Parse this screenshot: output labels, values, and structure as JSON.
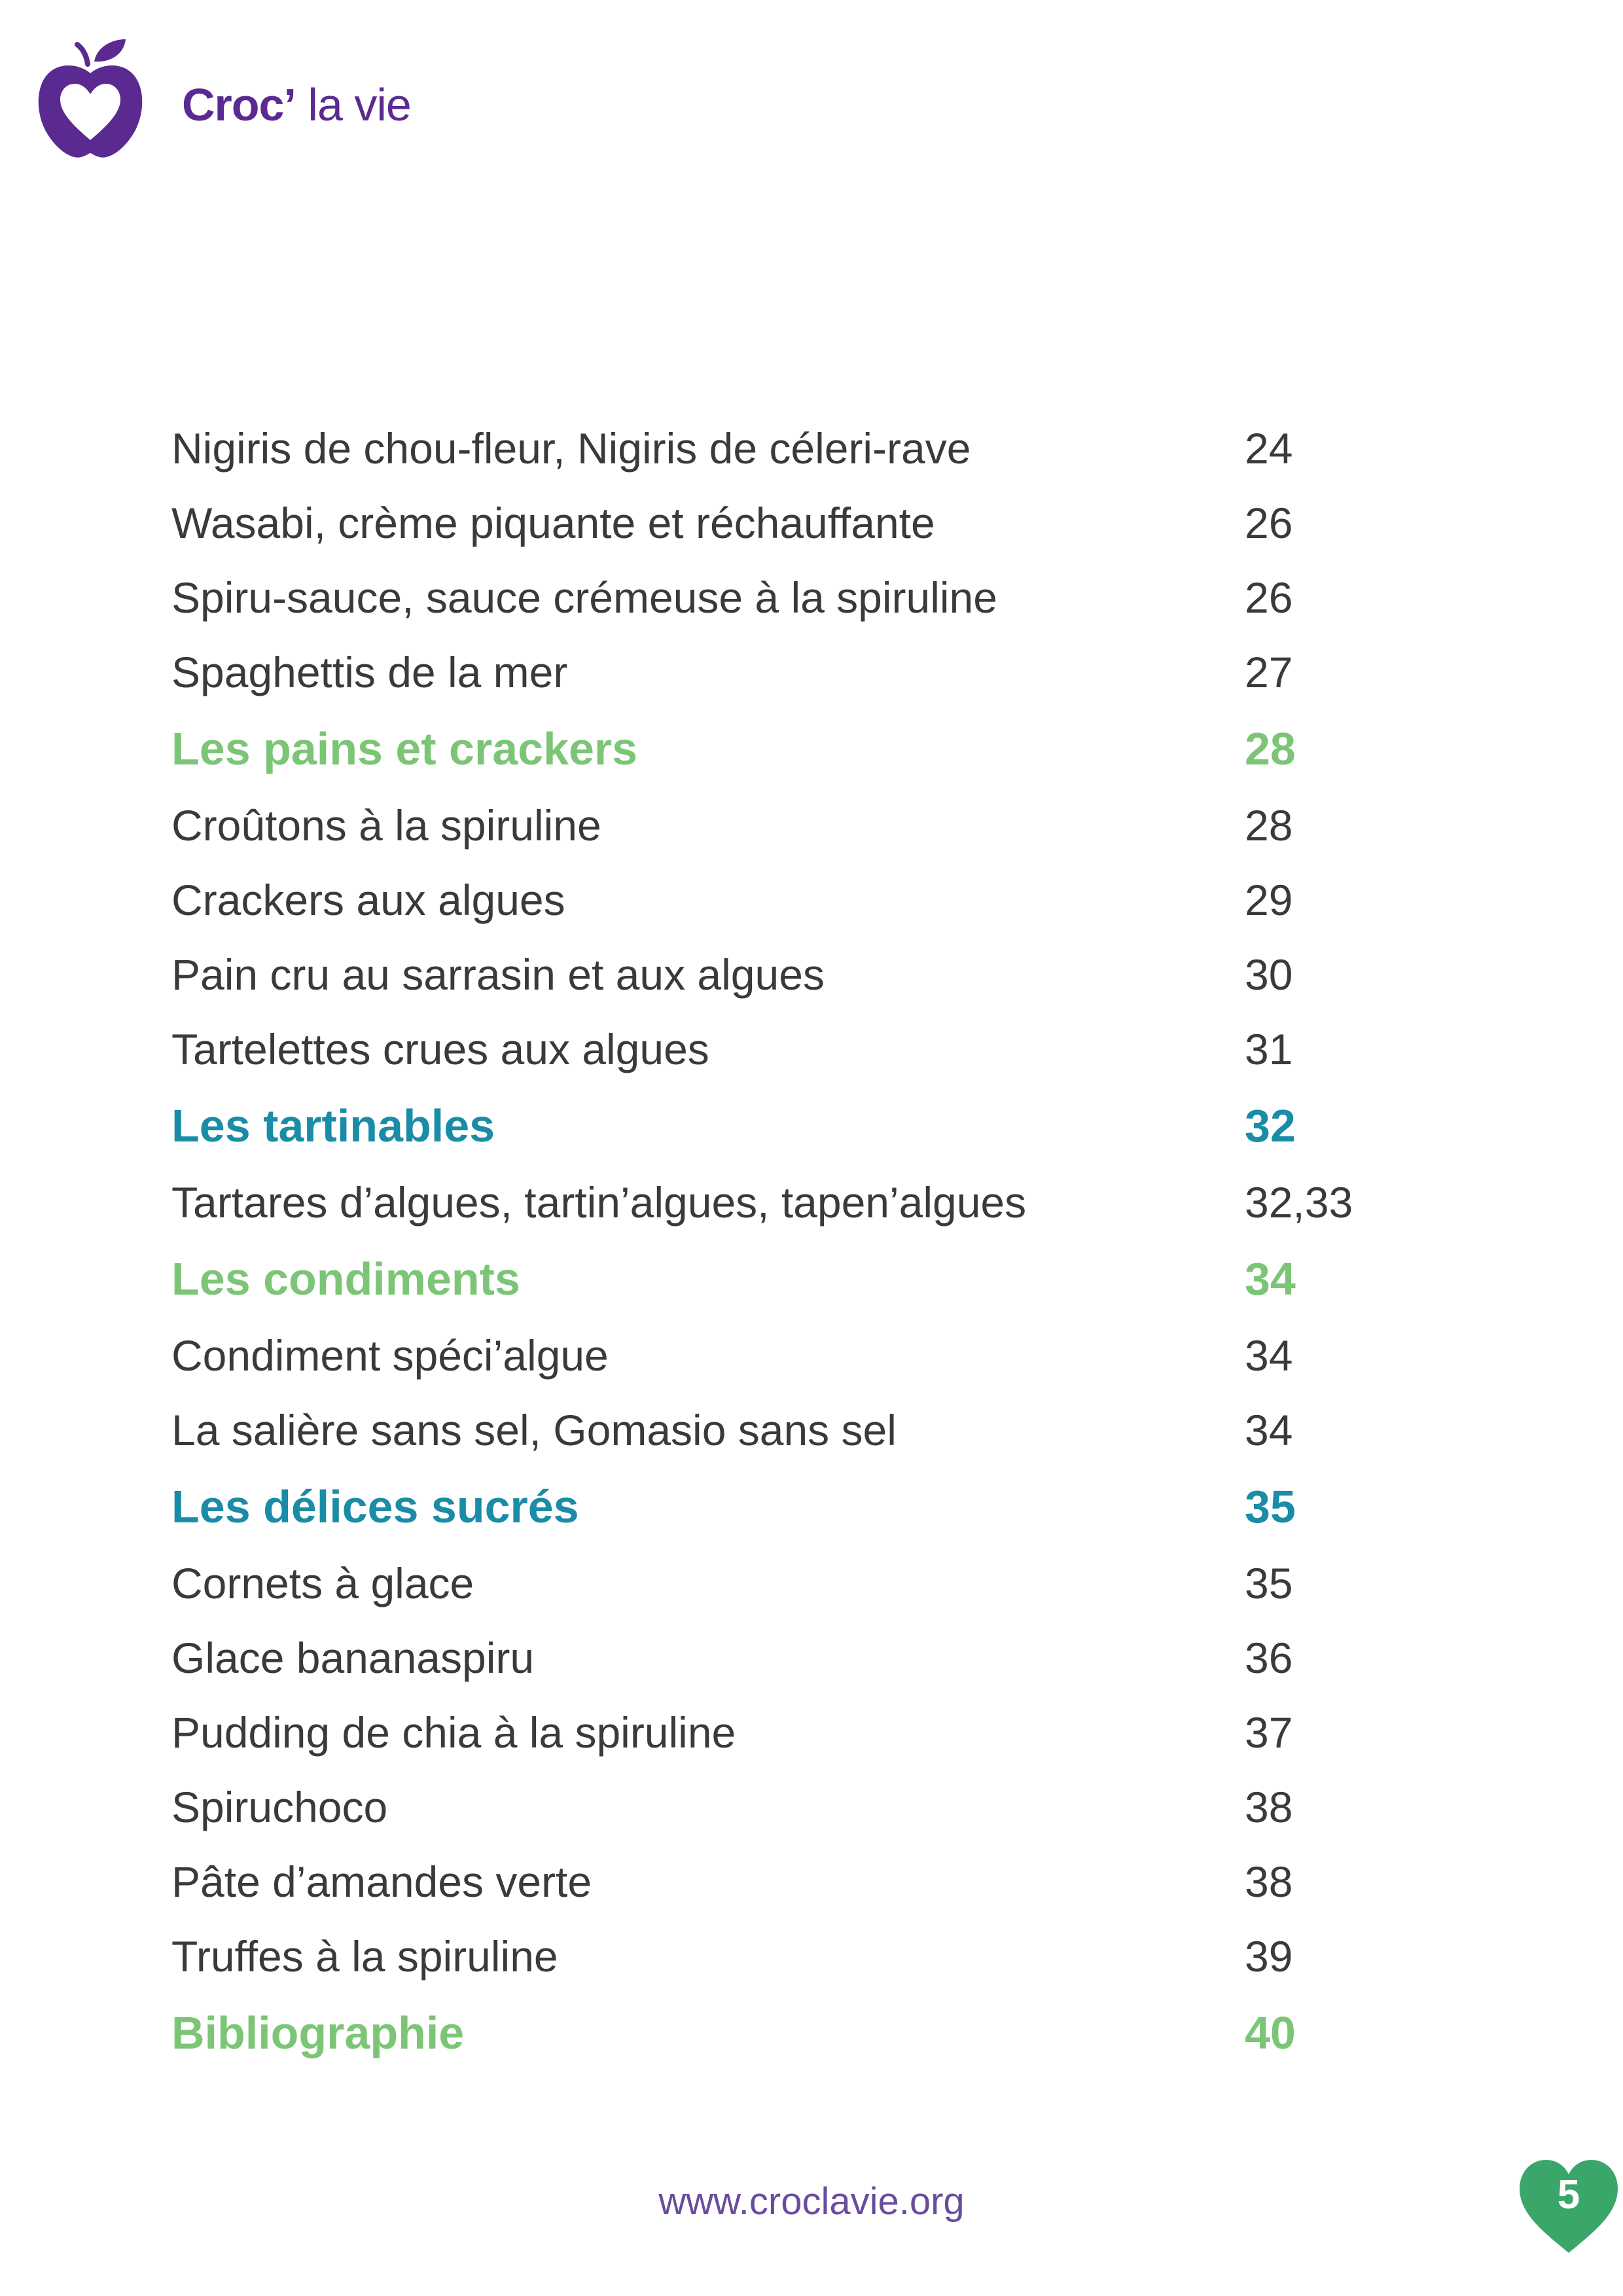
{
  "header": {
    "brand_bold": "Croc’",
    "brand_light": " la vie",
    "logo_icon": "apple-heart-icon",
    "brand_color": "#5b2a91"
  },
  "colors": {
    "section_green": "#7cc576",
    "section_blue": "#1a8ca7",
    "text": "#3a3a3a"
  },
  "toc": [
    {
      "title": "Nigiris de chou-fleur, Nigiris de céleri-rave",
      "page": "24",
      "type": "item"
    },
    {
      "title": "Wasabi, crème piquante et réchauffante",
      "page": "26",
      "type": "item"
    },
    {
      "title": "Spiru-sauce, sauce crémeuse à la spiruline",
      "page": "26",
      "type": "item"
    },
    {
      "title": "Spaghettis de la mer",
      "page": "27",
      "type": "item"
    },
    {
      "title": "Les pains et crackers",
      "page": "28",
      "type": "section-green"
    },
    {
      "title": "Croûtons à la spiruline",
      "page": "28",
      "type": "item"
    },
    {
      "title": "Crackers aux algues",
      "page": "29",
      "type": "item"
    },
    {
      "title": "Pain cru au sarrasin et aux algues",
      "page": "30",
      "type": "item"
    },
    {
      "title": "Tartelettes crues aux algues",
      "page": "31",
      "type": "item"
    },
    {
      "title": "Les tartinables",
      "page": "32",
      "type": "section-blue"
    },
    {
      "title": "Tartares d’algues, tartin’algues, tapen’algues",
      "page": "32,33",
      "type": "item"
    },
    {
      "title": "Les condiments",
      "page": "34",
      "type": "section-green"
    },
    {
      "title": "Condiment spéci’algue",
      "page": "34",
      "type": "item"
    },
    {
      "title": "La salière sans sel, Gomasio sans sel",
      "page": "34",
      "type": "item"
    },
    {
      "title": "Les délices sucrés",
      "page": "35",
      "type": "section-blue"
    },
    {
      "title": "Cornets à glace",
      "page": "35",
      "type": "item"
    },
    {
      "title": "Glace bananaspiru",
      "page": "36",
      "type": "item"
    },
    {
      "title": "Pudding de chia à la spiruline",
      "page": "37",
      "type": "item"
    },
    {
      "title": "Spiruchoco",
      "page": "38",
      "type": "item"
    },
    {
      "title": "Pâte d’amandes verte",
      "page": "38",
      "type": "item"
    },
    {
      "title": "Truffes à la spiruline",
      "page": "39",
      "type": "item"
    },
    {
      "title": "Bibliographie",
      "page": "40",
      "type": "section-green"
    }
  ],
  "footer": {
    "url": "www.croclavie.org",
    "page_number": "5",
    "badge_icon": "heart-icon",
    "badge_color": "#3aa66a"
  }
}
